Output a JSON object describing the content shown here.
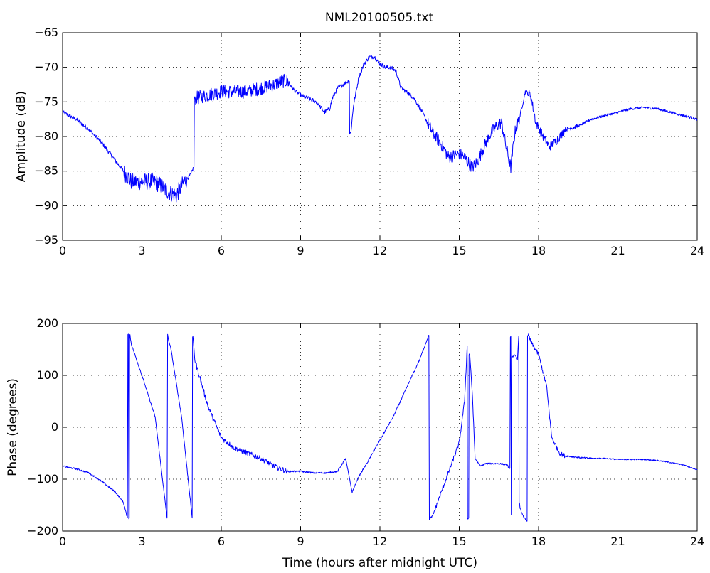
{
  "chart_data": [
    {
      "type": "line",
      "title": "NML20100505.txt",
      "xlabel": "",
      "ylabel": "Amplitude (dB)",
      "xlim": [
        0,
        24
      ],
      "ylim": [
        -95,
        -65
      ],
      "xticks": [
        0,
        3,
        6,
        9,
        12,
        15,
        18,
        21,
        24
      ],
      "yticks": [
        -95,
        -90,
        -85,
        -80,
        -75,
        -70,
        -65
      ],
      "grid": true,
      "color": "#0000ff",
      "series": [
        {
          "x": [
            0,
            0.5,
            1,
            1.5,
            2,
            2.3,
            2.6,
            3,
            3.5,
            4,
            4.3,
            4.6,
            4.85,
            4.95,
            5,
            5.5,
            6,
            6.5,
            7,
            7.5,
            8,
            8.3,
            8.5,
            8.8,
            9,
            9.3,
            9.6,
            9.9,
            10.1,
            10.2,
            10.4,
            10.6,
            10.8,
            10.9,
            11,
            11.2,
            11.4,
            11.6,
            11.8,
            12,
            12.2,
            12.4,
            12.6,
            12.8,
            13,
            13.3,
            13.6,
            14,
            14.3,
            14.6,
            15,
            15.2,
            15.5,
            15.7,
            16,
            16.2,
            16.4,
            16.6,
            16.8,
            16.95,
            17.1,
            17.3,
            17.5,
            17.7,
            17.9,
            18.1,
            18.4,
            18.7,
            19,
            19.5,
            20,
            20.5,
            21,
            21.5,
            22,
            22.5,
            23,
            23.5,
            24
          ],
          "y": [
            -76.5,
            -77.5,
            -79,
            -81,
            -83.5,
            -85,
            -86.5,
            -86.5,
            -86.5,
            -88,
            -88.5,
            -86.5,
            -85.5,
            -84.5,
            -74.5,
            -74,
            -73.5,
            -73.5,
            -73.5,
            -73,
            -72.5,
            -72,
            -72,
            -73.5,
            -74,
            -74.5,
            -75,
            -76.5,
            -76,
            -74.5,
            -73,
            -72.5,
            -72,
            -79.5,
            -75.5,
            -71.5,
            -69.5,
            -68.5,
            -68.5,
            -69.5,
            -70,
            -70,
            -70.5,
            -73,
            -73.5,
            -74.5,
            -76.5,
            -79.5,
            -81,
            -83,
            -82.5,
            -83,
            -84.5,
            -83.5,
            -81,
            -79.5,
            -78.5,
            -78,
            -82,
            -84.5,
            -79.5,
            -77,
            -73.5,
            -74,
            -78,
            -79.5,
            -81.5,
            -80.5,
            -79,
            -78.5,
            -77.5,
            -77,
            -76.5,
            -76,
            -75.8,
            -76,
            -76.5,
            -77,
            -77.5
          ]
        }
      ]
    },
    {
      "type": "line",
      "title": "",
      "xlabel": "Time (hours after midnight UTC)",
      "ylabel": "Phase (degrees)",
      "xlim": [
        0,
        24
      ],
      "ylim": [
        -200,
        200
      ],
      "xticks": [
        0,
        3,
        6,
        9,
        12,
        15,
        18,
        21,
        24
      ],
      "yticks": [
        -200,
        -100,
        0,
        100,
        200
      ],
      "grid": true,
      "color": "#0000ff",
      "series": [
        {
          "x": [
            0,
            0.5,
            1,
            1.5,
            2,
            2.3,
            2.45,
            2.47,
            2.52,
            2.55,
            2.57,
            2.6,
            3,
            3.5,
            3.95,
            3.97,
            4,
            4.05,
            4.1,
            4.5,
            4.9,
            4.93,
            5,
            5.5,
            6,
            6.5,
            7,
            7.5,
            8,
            8.5,
            9,
            9.5,
            10,
            10.4,
            10.7,
            10.95,
            11.2,
            11.5,
            12,
            12.5,
            13,
            13.5,
            13.85,
            13.87,
            14,
            14.5,
            15,
            15.2,
            15.3,
            15.33,
            15.4,
            15.5,
            15.6,
            15.8,
            16,
            16.5,
            16.8,
            16.9,
            16.95,
            16.97,
            17,
            17.1,
            17.2,
            17.25,
            17.28,
            17.3,
            17.4,
            17.55,
            17.6,
            17.62,
            17.7,
            18,
            18.3,
            18.5,
            18.8,
            19,
            19.5,
            20,
            20.5,
            21,
            21.5,
            22,
            22.5,
            23,
            23.5,
            24
          ],
          "y": [
            -75,
            -80,
            -88,
            -105,
            -125,
            -145,
            -175,
            180,
            -175,
            178,
            170,
            160,
            100,
            20,
            -175,
            178,
            170,
            160,
            150,
            20,
            -175,
            175,
            130,
            40,
            -20,
            -40,
            -50,
            -60,
            -75,
            -85,
            -85,
            -88,
            -88,
            -85,
            -60,
            -125,
            -95,
            -70,
            -25,
            20,
            75,
            130,
            178,
            -178,
            -170,
            -100,
            -30,
            50,
            155,
            -175,
            140,
            60,
            -60,
            -75,
            -70,
            -70,
            -72,
            -80,
            175,
            -170,
            135,
            140,
            130,
            175,
            -145,
            -155,
            -170,
            -180,
            175,
            178,
            165,
            140,
            80,
            -20,
            -50,
            -55,
            -58,
            -60,
            -60,
            -62,
            -62,
            -62,
            -64,
            -68,
            -73,
            -82
          ]
        }
      ]
    }
  ]
}
